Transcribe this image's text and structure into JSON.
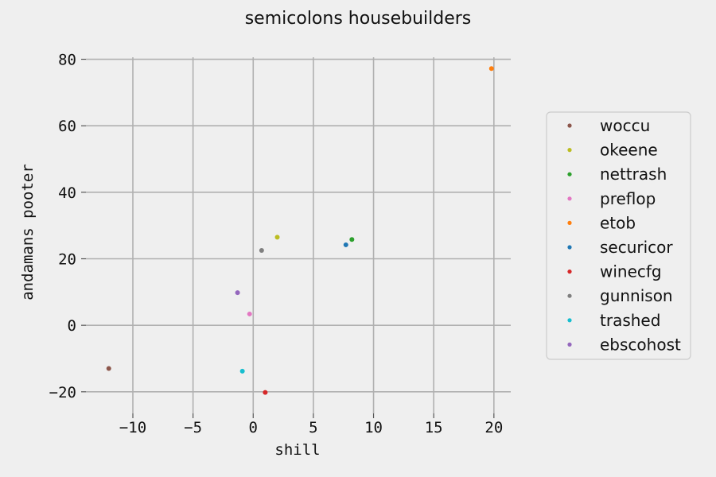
{
  "chart_data": {
    "type": "scatter",
    "title": "semicolons housebuilders",
    "xlabel": "shill",
    "ylabel": "andamans pooter",
    "xlim": [
      -13.9,
      21.4
    ],
    "ylim": [
      -26.5,
      83
    ],
    "xticks": [
      -10,
      -5,
      0,
      5,
      10,
      15,
      20
    ],
    "yticks": [
      -20,
      0,
      20,
      40,
      60,
      80
    ],
    "grid": true,
    "legend_position": "right",
    "series": [
      {
        "name": "woccu",
        "color": "#8c564b",
        "x": -12.0,
        "y": -13.0
      },
      {
        "name": "okeene",
        "color": "#bcbd22",
        "x": 2.0,
        "y": 26.5
      },
      {
        "name": "nettrash",
        "color": "#2ca02c",
        "x": 8.2,
        "y": 25.8
      },
      {
        "name": "preflop",
        "color": "#e377c2",
        "x": -0.3,
        "y": 3.4
      },
      {
        "name": "etob",
        "color": "#ff7f0e",
        "x": 19.8,
        "y": 77.2
      },
      {
        "name": "securicor",
        "color": "#1f77b4",
        "x": 7.7,
        "y": 24.2
      },
      {
        "name": "winecfg",
        "color": "#d62728",
        "x": 1.0,
        "y": -20.2
      },
      {
        "name": "gunnison",
        "color": "#7f7f7f",
        "x": 0.7,
        "y": 22.5
      },
      {
        "name": "trashed",
        "color": "#17becf",
        "x": -0.9,
        "y": -13.8
      },
      {
        "name": "ebscohost",
        "color": "#9467bd",
        "x": -1.3,
        "y": 9.8
      }
    ]
  }
}
